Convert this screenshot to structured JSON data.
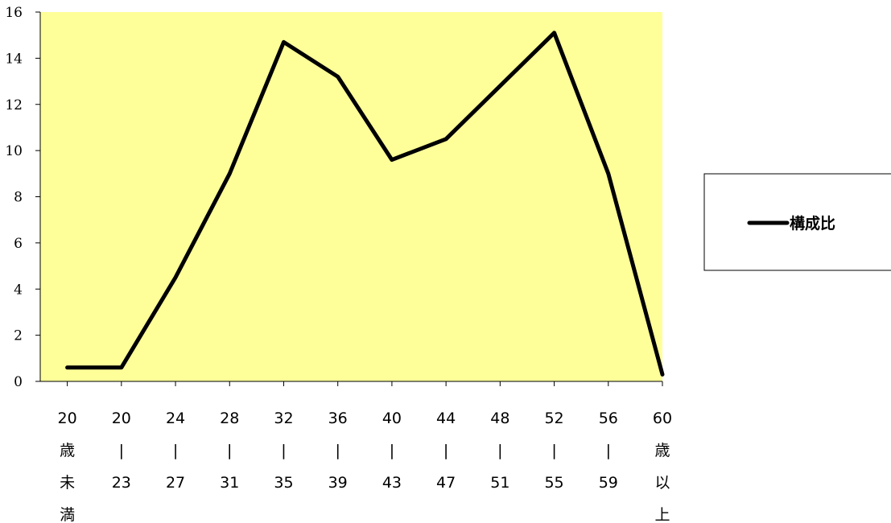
{
  "chart_data": {
    "type": "line",
    "title": "",
    "xlabel": "",
    "ylabel": "",
    "ylim": [
      0,
      16
    ],
    "yticks": [
      0,
      2,
      4,
      6,
      8,
      10,
      12,
      14,
      16
    ],
    "grid": false,
    "legend": {
      "placement": "right"
    },
    "colors": {
      "plot_background": "#FFFF99",
      "line": "#000000"
    },
    "categories": [
      [
        "20",
        "歳",
        "未",
        "満"
      ],
      [
        "20",
        "|",
        "23"
      ],
      [
        "24",
        "|",
        "27"
      ],
      [
        "28",
        "|",
        "31"
      ],
      [
        "32",
        "|",
        "35"
      ],
      [
        "36",
        "|",
        "39"
      ],
      [
        "40",
        "|",
        "43"
      ],
      [
        "44",
        "|",
        "47"
      ],
      [
        "48",
        "|",
        "51"
      ],
      [
        "52",
        "|",
        "55"
      ],
      [
        "56",
        "|",
        "59"
      ],
      [
        "60",
        "歳",
        "以",
        "上"
      ]
    ],
    "series": [
      {
        "name": "構成比",
        "values": [
          0.6,
          0.6,
          4.5,
          9.0,
          14.7,
          13.2,
          9.6,
          10.5,
          12.8,
          15.1,
          9.0,
          0.3
        ]
      }
    ]
  }
}
